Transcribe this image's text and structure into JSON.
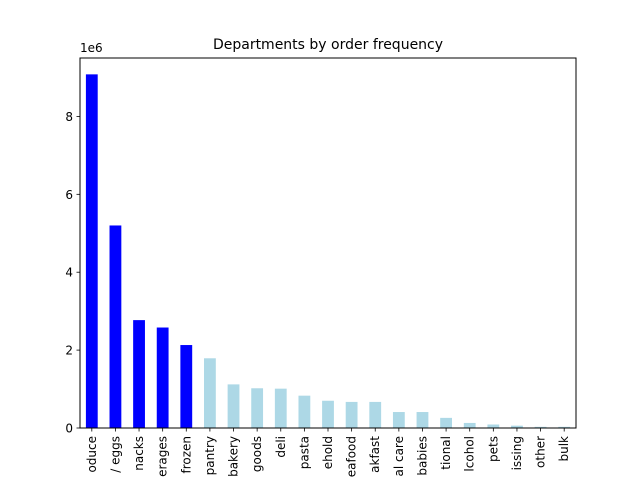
{
  "chart_data": {
    "type": "bar",
    "title": "Departments by order frequency",
    "xlabel": "",
    "ylabel": "",
    "y_multiplier_label": "1e6",
    "y_scale": 1000000,
    "ylim": [
      0,
      9500000
    ],
    "y_ticks": [
      0,
      2000000,
      4000000,
      6000000,
      8000000
    ],
    "y_tick_labels": [
      "0",
      "2",
      "4",
      "6",
      "8"
    ],
    "grid": false,
    "legend": "none",
    "colors": {
      "top5": "#0000ff",
      "rest": "#add8e6"
    },
    "top_n_highlight": 5,
    "categories": [
      "oduce",
      "/ eggs",
      "nacks",
      "erages",
      "frozen",
      "pantry",
      "bakery",
      "goods",
      "deli",
      "pasta",
      "ehold",
      "eafood",
      "akfast",
      "al care",
      "babies",
      "tional",
      "lcohol",
      "pets",
      "issing",
      "other",
      "bulk"
    ],
    "values": [
      9080000,
      5200000,
      2770000,
      2580000,
      2130000,
      1790000,
      1120000,
      1020000,
      1010000,
      830000,
      700000,
      670000,
      670000,
      410000,
      410000,
      260000,
      130000,
      90000,
      60000,
      30000,
      30000
    ]
  }
}
